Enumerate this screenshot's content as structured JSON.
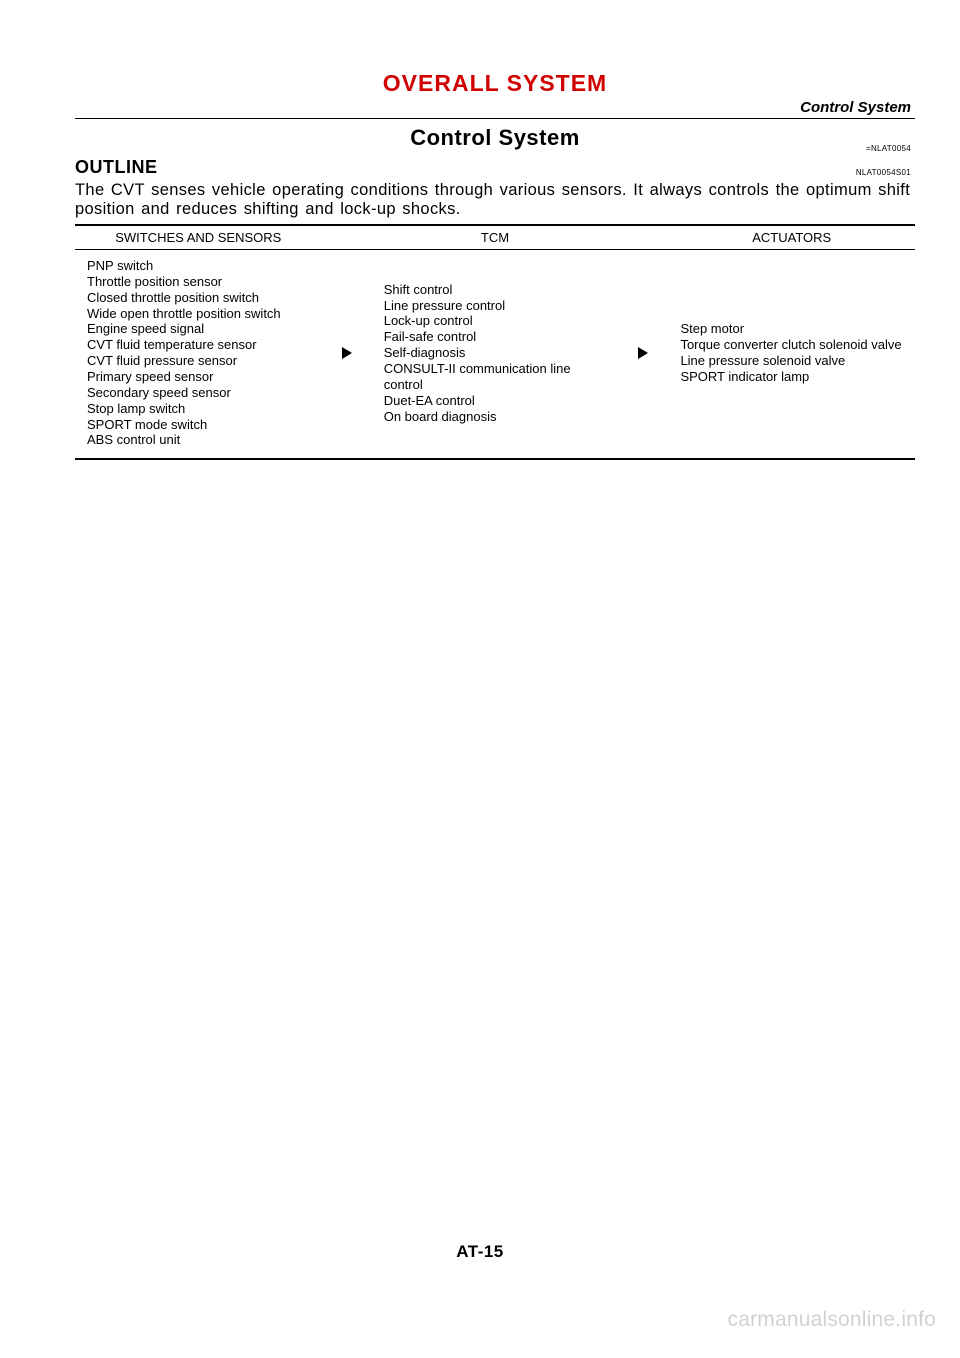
{
  "header": {
    "chapter_title": "OVERALL SYSTEM",
    "breadcrumb": "Control System"
  },
  "section": {
    "title": "Control System",
    "code_right": "=NLAT0054"
  },
  "outline": {
    "label": "OUTLINE",
    "code_right": "NLAT0054S01"
  },
  "intro_text": "The CVT senses vehicle operating conditions through various sensors. It always controls the optimum shift position and reduces shifting and lock-up shocks.",
  "table": {
    "headers": {
      "sensors": "SWITCHES AND SENSORS",
      "tcm": "TCM",
      "actuators": "ACTUATORS"
    },
    "cells": {
      "sensors": "PNP switch\nThrottle position sensor\nClosed throttle position switch\nWide open throttle position switch\nEngine speed signal\nCVT fluid temperature sensor\nCVT fluid pressure sensor\nPrimary speed sensor\nSecondary speed sensor\nStop lamp switch\nSPORT mode switch\nABS control unit",
      "tcm": "Shift control\nLine pressure control\nLock-up control\nFail-safe control\nSelf-diagnosis\nCONSULT-II communication line control\nDuet-EA control\nOn board diagnosis",
      "actuators": "Step motor\nTorque converter clutch solenoid valve\nLine pressure solenoid valve\nSPORT indicator lamp"
    }
  },
  "footer": {
    "page_number": "AT-15",
    "watermark": "carmanualsonline.info"
  }
}
